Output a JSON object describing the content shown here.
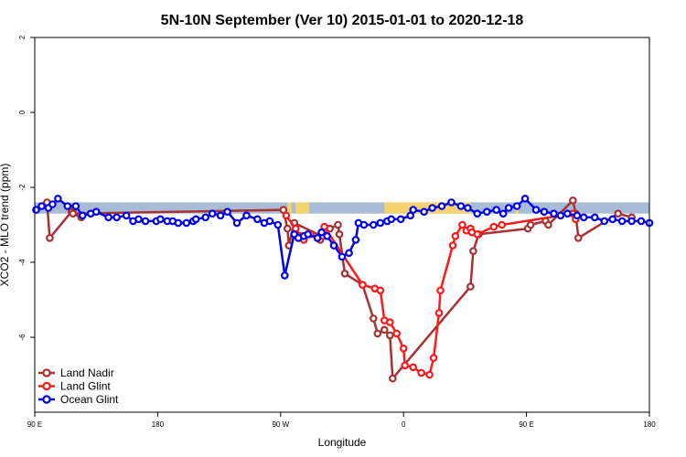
{
  "chart_data": {
    "type": "line",
    "title": "5N-10N September (Ver 10)   2015-01-01 to 2020-12-18",
    "xlabel": "Longitude",
    "ylabel": "XCO2 - MLO trend (ppm)",
    "x_ticks": [
      {
        "value": 90,
        "label": "90 E"
      },
      {
        "value": 180,
        "label": "180"
      },
      {
        "value": 270,
        "label": "90 W"
      },
      {
        "value": 360,
        "label": "0"
      },
      {
        "value": 450,
        "label": "90 E"
      },
      {
        "value": 540,
        "label": "180"
      }
    ],
    "y_ticks": [
      {
        "value": 2,
        "label": "2"
      },
      {
        "value": 0,
        "label": "0"
      },
      {
        "value": -2,
        "label": "-2"
      },
      {
        "value": -4,
        "label": "-4"
      },
      {
        "value": -6,
        "label": "-6"
      }
    ],
    "xlim": [
      90,
      540
    ],
    "ylim": [
      -8,
      2
    ],
    "land_strip": {
      "y_range": [
        -2.7,
        -2.4
      ],
      "ocean_color": "#a8bcd8",
      "land_color": "#f5d36e",
      "land_segments": [
        [
          275,
          278
        ],
        [
          281,
          291
        ],
        [
          346,
          409
        ],
        [
          442,
          444
        ]
      ]
    },
    "series": [
      {
        "name": "Land Nadir",
        "color": "#a83232",
        "x": [
          99,
          101,
          118,
          117,
          124,
          118,
          272,
          275,
          276,
          280,
          300,
          299,
          306,
          312,
          313,
          317,
          330,
          338,
          341,
          346,
          350,
          352,
          409,
          411,
          415,
          451,
          453,
          464,
          466,
          484,
          486,
          488,
          517,
          527
        ],
        "y": [
          -2.4,
          -3.35,
          -2.6,
          -2.65,
          -2.8,
          -2.7,
          -2.6,
          -3.1,
          -3.55,
          -2.95,
          -3.3,
          -3.4,
          -3.1,
          -3.0,
          -3.25,
          -4.3,
          -4.6,
          -5.5,
          -5.9,
          -5.8,
          -5.95,
          -7.1,
          -4.65,
          -3.7,
          -3.25,
          -3.1,
          -3.0,
          -2.9,
          -3.0,
          -2.35,
          -2.7,
          -3.35,
          -2.7,
          -2.8
        ]
      },
      {
        "name": "Land Glint",
        "color": "#ff1a1a",
        "x": [
          274,
          281,
          285,
          287,
          292,
          297,
          301,
          302,
          330,
          339,
          343,
          346,
          350,
          355,
          360,
          361,
          367,
          373,
          379,
          382,
          386,
          387,
          396,
          398,
          403,
          406,
          409,
          410,
          414,
          426,
          432,
          484,
          486
        ],
        "y": [
          -2.75,
          -3.1,
          -3.3,
          -3.4,
          -3.25,
          -3.35,
          -3.3,
          -3.05,
          -4.6,
          -4.7,
          -4.75,
          -5.55,
          -5.6,
          -5.9,
          -6.3,
          -6.75,
          -6.8,
          -6.95,
          -7.0,
          -6.55,
          -5.35,
          -4.75,
          -3.55,
          -3.3,
          -3.0,
          -3.15,
          -3.1,
          -3.2,
          -3.25,
          -3.05,
          -3.0,
          -2.7,
          -2.85
        ]
      },
      {
        "name": "Ocean Glint",
        "color": "#0000ee",
        "x": [
          91,
          95,
          100,
          103,
          107,
          114,
          120,
          125,
          131,
          135,
          144,
          150,
          157,
          162,
          166,
          171,
          179,
          182,
          187,
          191,
          195,
          201,
          206,
          208,
          215,
          220,
          226,
          231,
          238,
          245,
          253,
          258,
          262,
          268,
          273,
          280,
          283,
          287,
          290,
          297,
          300,
          304,
          309,
          315,
          320,
          325,
          327,
          331,
          338,
          343,
          348,
          351,
          358,
          365,
          367,
          375,
          381,
          388,
          395,
          402,
          407,
          414,
          421,
          428,
          433,
          437,
          443,
          449,
          457,
          463,
          470,
          475,
          480,
          487,
          492,
          500,
          507,
          513,
          520,
          527,
          534,
          540
        ],
        "y": [
          -2.6,
          -2.5,
          -2.55,
          -2.45,
          -2.3,
          -2.5,
          -2.5,
          -2.75,
          -2.7,
          -2.65,
          -2.8,
          -2.8,
          -2.75,
          -2.9,
          -2.85,
          -2.9,
          -2.9,
          -2.85,
          -2.9,
          -2.9,
          -2.95,
          -2.95,
          -2.9,
          -2.85,
          -2.8,
          -2.7,
          -2.75,
          -2.65,
          -2.95,
          -2.75,
          -2.85,
          -2.95,
          -2.9,
          -3.0,
          -4.35,
          -3.25,
          -3.35,
          -3.3,
          -3.25,
          -3.35,
          -3.2,
          -3.3,
          -3.55,
          -3.85,
          -3.75,
          -3.4,
          -2.95,
          -3.0,
          -3.0,
          -2.95,
          -2.9,
          -2.85,
          -2.85,
          -2.75,
          -2.6,
          -2.65,
          -2.55,
          -2.5,
          -2.4,
          -2.5,
          -2.55,
          -2.7,
          -2.65,
          -2.6,
          -2.7,
          -2.55,
          -2.5,
          -2.3,
          -2.6,
          -2.65,
          -2.7,
          -2.75,
          -2.7,
          -2.75,
          -2.8,
          -2.8,
          -2.9,
          -2.85,
          -2.9,
          -2.9,
          -2.9,
          -2.95
        ]
      }
    ],
    "legend": {
      "placement": "bottom-left"
    }
  }
}
